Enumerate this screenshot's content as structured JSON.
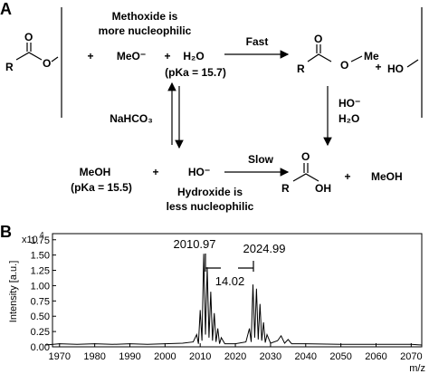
{
  "panel_a": {
    "label": "A",
    "plus": "+",
    "methoxide_note": [
      "Methoxide is",
      "more nucleophilic"
    ],
    "methoxide": "MeO⁻",
    "water": "H₂O",
    "water_pka": "(pKa = 15.7)",
    "fast": "Fast",
    "slow": "Slow",
    "nahco3": "NaHCO₃",
    "hydroxide": "HO⁻",
    "methanol": "MeOH",
    "methanol_pka": "(pKa = 15.5)",
    "hydroxide_note": [
      "Hydroxide is",
      "less nucleophilic"
    ],
    "atoms": {
      "R": "R",
      "O": "O",
      "Me": "Me",
      "OH": "OH",
      "HO": "HO"
    }
  },
  "chart_data": {
    "type": "line",
    "label": "B",
    "y_label": "Intensity [a.u.]",
    "x_label": "m/z",
    "y_exponent": "x10",
    "y_exponent_power": "4",
    "annotations": [
      "2010.97",
      "2024.99",
      "14.02"
    ],
    "color": "#000000",
    "x": [
      1966,
      1970,
      1975,
      1980,
      1985,
      1990,
      1995,
      2000,
      2005,
      2008,
      2009,
      2009.5,
      2010,
      2010.5,
      2011,
      2011.5,
      2012,
      2012.5,
      2013,
      2013.5,
      2014,
      2014.5,
      2015,
      2015.5,
      2016,
      2017,
      2020,
      2023,
      2024,
      2024.5,
      2025,
      2025.5,
      2026,
      2026.5,
      2027,
      2027.5,
      2028,
      2028.5,
      2029,
      2030,
      2032,
      2033,
      2034,
      2035,
      2036,
      2040,
      2050,
      2060,
      2070,
      2073
    ],
    "values": [
      0.03,
      0.05,
      0.04,
      0.05,
      0.04,
      0.05,
      0.04,
      0.05,
      0.06,
      0.08,
      0.2,
      0.05,
      0.6,
      0.1,
      1.52,
      0.2,
      1.3,
      0.15,
      0.9,
      0.1,
      0.55,
      0.08,
      0.3,
      0.05,
      0.15,
      0.05,
      0.05,
      0.08,
      0.3,
      0.08,
      1.02,
      0.15,
      0.95,
      0.12,
      0.7,
      0.1,
      0.4,
      0.07,
      0.2,
      0.06,
      0.1,
      0.18,
      0.06,
      0.12,
      0.05,
      0.05,
      0.04,
      0.04,
      0.04,
      0.03
    ],
    "xlim": [
      1968,
      2073
    ],
    "ylim": [
      0,
      1.85
    ],
    "xticks": [
      1970,
      1980,
      1990,
      2000,
      2010,
      2020,
      2030,
      2040,
      2050,
      2060,
      2070
    ],
    "yticks": [
      {
        "value": 0,
        "label": "0.00"
      },
      {
        "value": 0.25,
        "label": "0.25"
      },
      {
        "value": 0.5,
        "label": "0.50"
      },
      {
        "value": 0.75,
        "label": "0.75"
      },
      {
        "value": 1,
        "label": "1.00"
      },
      {
        "value": 1.25,
        "label": "1.25"
      },
      {
        "value": 1.5,
        "label": "1.50"
      },
      {
        "value": 1.75,
        "label": "1.75"
      }
    ]
  }
}
